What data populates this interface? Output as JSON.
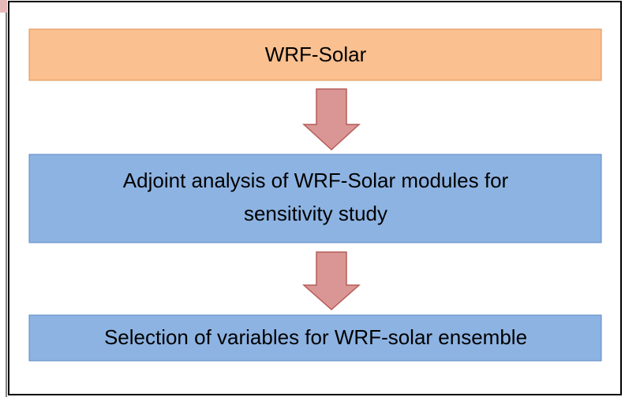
{
  "nodes": [
    {
      "lines": [
        "WRF-Solar"
      ]
    },
    {
      "lines": [
        "Adjoint analysis of WRF-Solar modules for",
        "sensitivity study"
      ]
    },
    {
      "lines": [
        "Selection of variables for WRF-solar ensemble"
      ]
    }
  ]
}
